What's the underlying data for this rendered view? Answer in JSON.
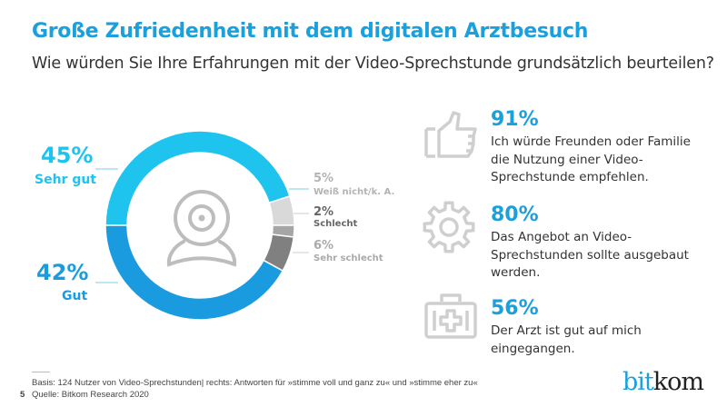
{
  "header": {
    "title": "Große Zufriedenheit mit dem digitalen Arztbesuch",
    "subtitle": "Wie würden Sie Ihre Erfahrungen mit der Video-Sprechstunde grundsätzlich beurteilen?"
  },
  "chart_data": {
    "type": "pie",
    "variant": "donut",
    "center_icon": "webcam-icon",
    "categories": [
      "Sehr gut",
      "Weiß nicht/k. A.",
      "Schlecht",
      "Sehr schlecht",
      "Gut"
    ],
    "values": [
      45,
      5,
      2,
      6,
      42
    ],
    "labels": [
      "45%",
      "5%",
      "2%",
      "6%",
      "42%"
    ],
    "colors": [
      "#1ec3ee",
      "#d9d9d9",
      "#a6a6a6",
      "#808080",
      "#1a9be0"
    ],
    "label_colors": [
      "#1ec3ee",
      "#b3b3b3",
      "#666666",
      "#aaaaaa",
      "#1a9be0"
    ]
  },
  "stats": [
    {
      "icon": "thumbs-up-icon",
      "value": "91%",
      "text": "Ich würde Freunden oder Familie die Nutzung einer Video-Sprechstunde empfehlen."
    },
    {
      "icon": "gear-icon",
      "value": "80%",
      "text": "Das Angebot an Video-Sprechstunden sollte ausgebaut werden."
    },
    {
      "icon": "first-aid-kit-icon",
      "value": "56%",
      "text": "Der Arzt ist gut auf mich eingegangen."
    }
  ],
  "footer": {
    "basis": "Basis: 124 Nutzer von Video-Sprechstunden| rechts: Antworten für »stimme voll und ganz zu« und »stimme eher zu«",
    "source": "Quelle: Bitkom Research 2020",
    "page_number": "5",
    "logo": {
      "part1": "bit",
      "part2": "kom",
      "color1": "#1aa0dc",
      "color2": "#222222"
    }
  }
}
